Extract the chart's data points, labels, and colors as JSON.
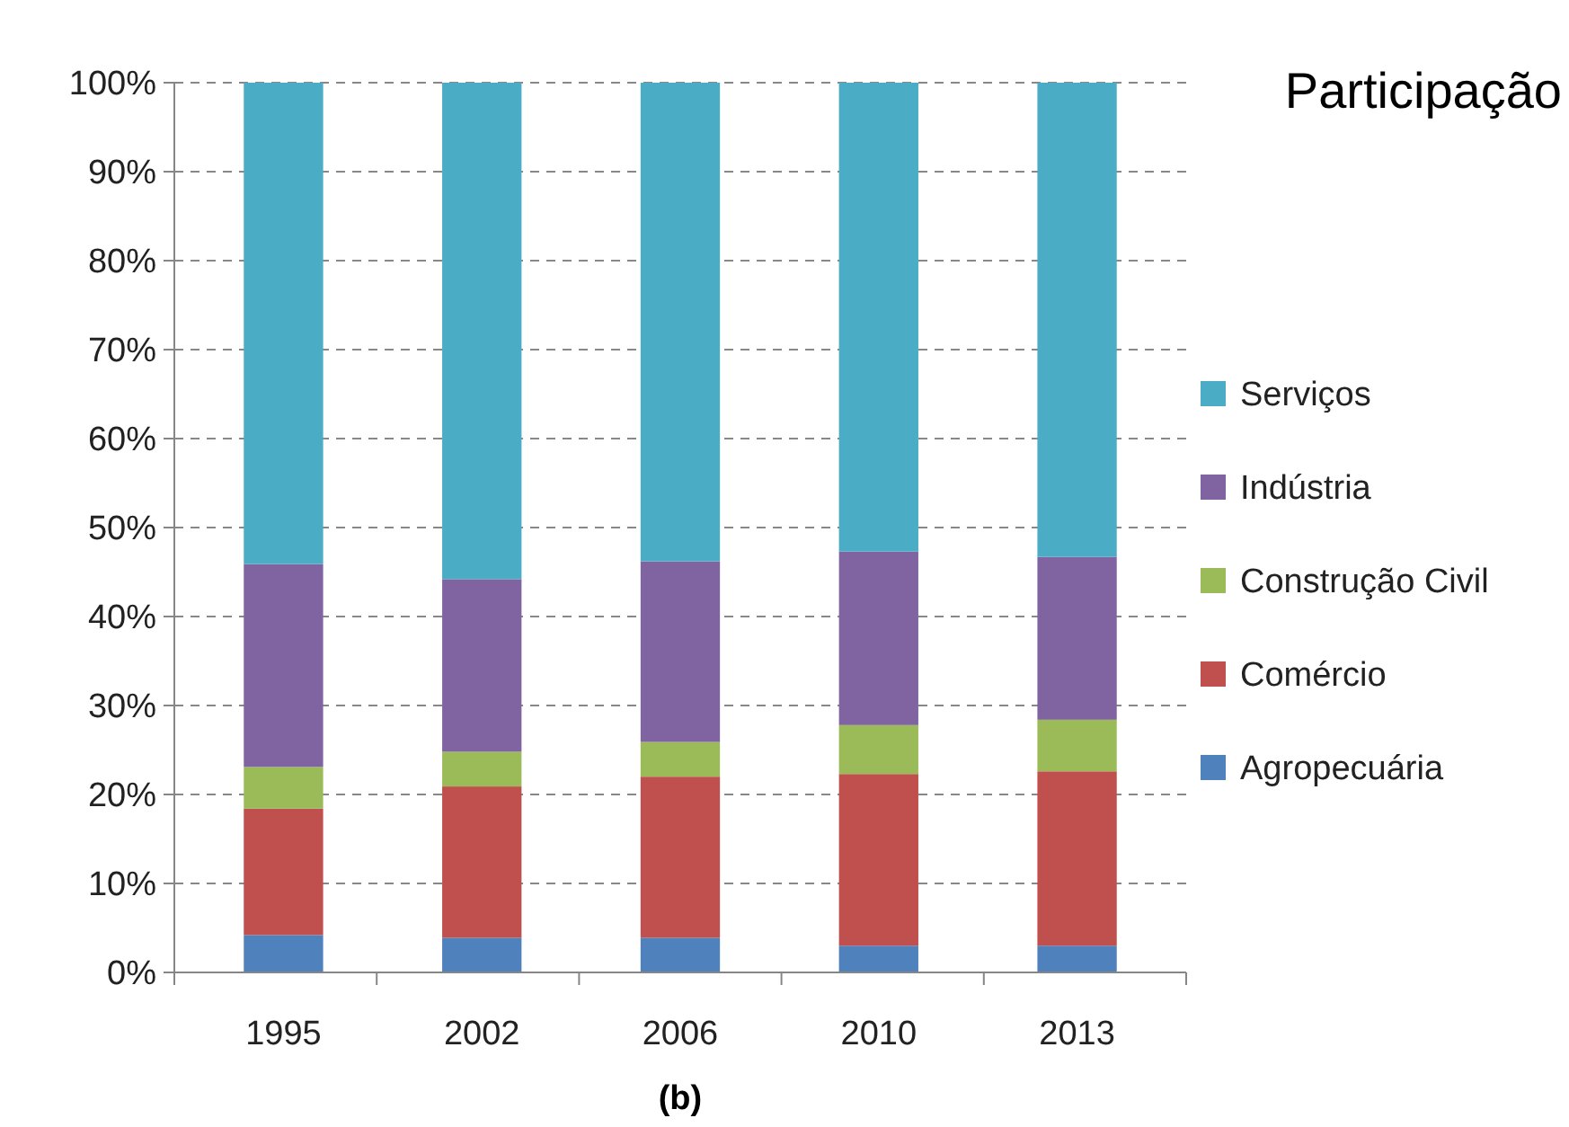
{
  "chart_data": {
    "type": "bar",
    "title": "Participação",
    "categories": [
      "1995",
      "2002",
      "2006",
      "2010",
      "2013"
    ],
    "stacked": true,
    "series": [
      {
        "name": "Agropecuária",
        "color": "#4f81bd",
        "values": [
          4.2,
          3.9,
          3.9,
          3.0,
          3.0
        ]
      },
      {
        "name": "Comércio",
        "color": "#c0504d",
        "values": [
          14.2,
          17.0,
          18.1,
          19.3,
          19.6
        ]
      },
      {
        "name": "Construção Civil",
        "color": "#9bbb59",
        "values": [
          4.7,
          3.9,
          3.9,
          5.5,
          5.8
        ]
      },
      {
        "name": "Indústria",
        "color": "#8064a2",
        "values": [
          22.8,
          19.4,
          20.3,
          19.5,
          18.3
        ]
      },
      {
        "name": "Serviços",
        "color": "#4bacc6",
        "values": [
          54.1,
          55.8,
          53.8,
          52.7,
          53.3
        ]
      }
    ],
    "ylim": [
      0,
      100
    ],
    "yticks": [
      {
        "value": 0,
        "label": "0%"
      },
      {
        "value": 10,
        "label": "10%"
      },
      {
        "value": 20,
        "label": "20%"
      },
      {
        "value": 30,
        "label": "30%"
      },
      {
        "value": 40,
        "label": "40%"
      },
      {
        "value": 50,
        "label": "50%"
      },
      {
        "value": 60,
        "label": "60%"
      },
      {
        "value": 70,
        "label": "70%"
      },
      {
        "value": 80,
        "label": "80%"
      },
      {
        "value": 90,
        "label": "90%"
      },
      {
        "value": 100,
        "label": "100%"
      }
    ],
    "grid": "y",
    "legend": "right",
    "annotations": [
      "(b)"
    ]
  }
}
